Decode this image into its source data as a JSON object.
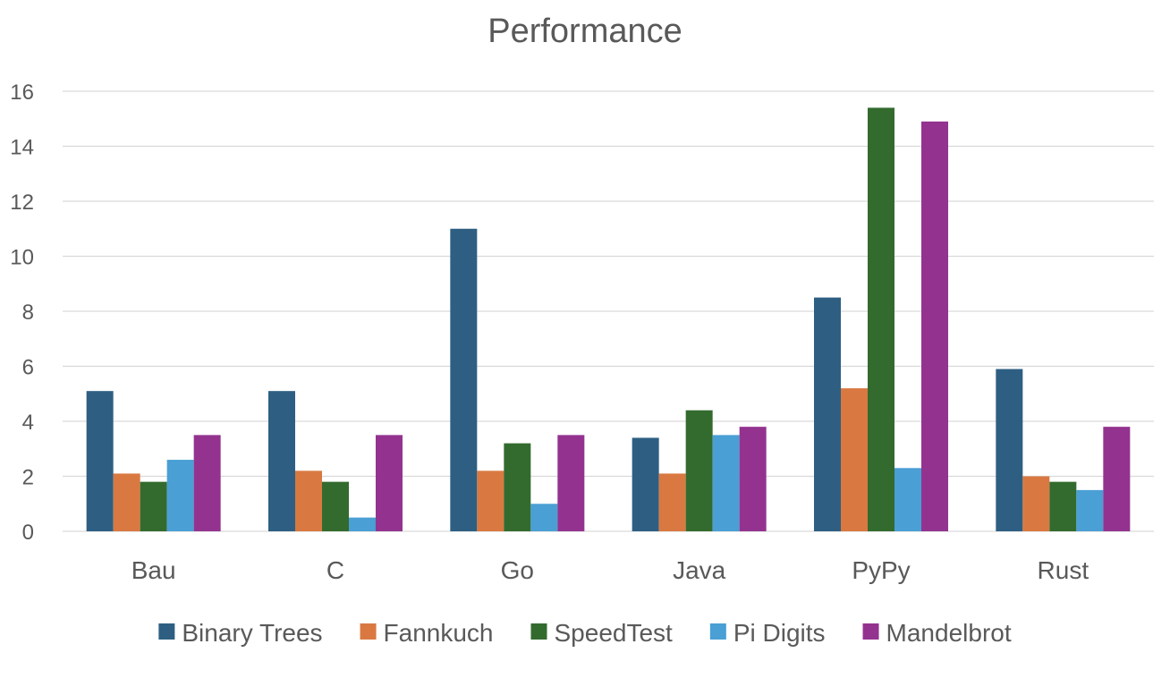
{
  "chart_data": {
    "type": "bar",
    "title": "Performance",
    "xlabel": "",
    "ylabel": "",
    "categories": [
      "Bau",
      "C",
      "Go",
      "Java",
      "PyPy",
      "Rust"
    ],
    "series": [
      {
        "name": "Binary Trees",
        "color": "#2e5f82",
        "values": [
          5.1,
          5.1,
          11.0,
          3.4,
          8.5,
          5.9
        ]
      },
      {
        "name": "Fannkuch",
        "color": "#d97941",
        "values": [
          2.1,
          2.2,
          2.2,
          2.1,
          5.2,
          2.0
        ]
      },
      {
        "name": "SpeedTest",
        "color": "#336b2e",
        "values": [
          1.8,
          1.8,
          3.2,
          4.4,
          15.4,
          1.8
        ]
      },
      {
        "name": "Pi Digits",
        "color": "#4a9fd4",
        "values": [
          2.6,
          0.5,
          1.0,
          3.5,
          2.3,
          1.5
        ]
      },
      {
        "name": "Mandelbrot",
        "color": "#93338f",
        "values": [
          3.5,
          3.5,
          3.5,
          3.8,
          14.9,
          3.8
        ]
      }
    ],
    "yticks": [
      "0",
      "2",
      "4",
      "6",
      "8",
      "10",
      "12",
      "14",
      "16"
    ],
    "ylim": [
      0,
      16
    ],
    "grid": true,
    "legend_position": "bottom"
  }
}
